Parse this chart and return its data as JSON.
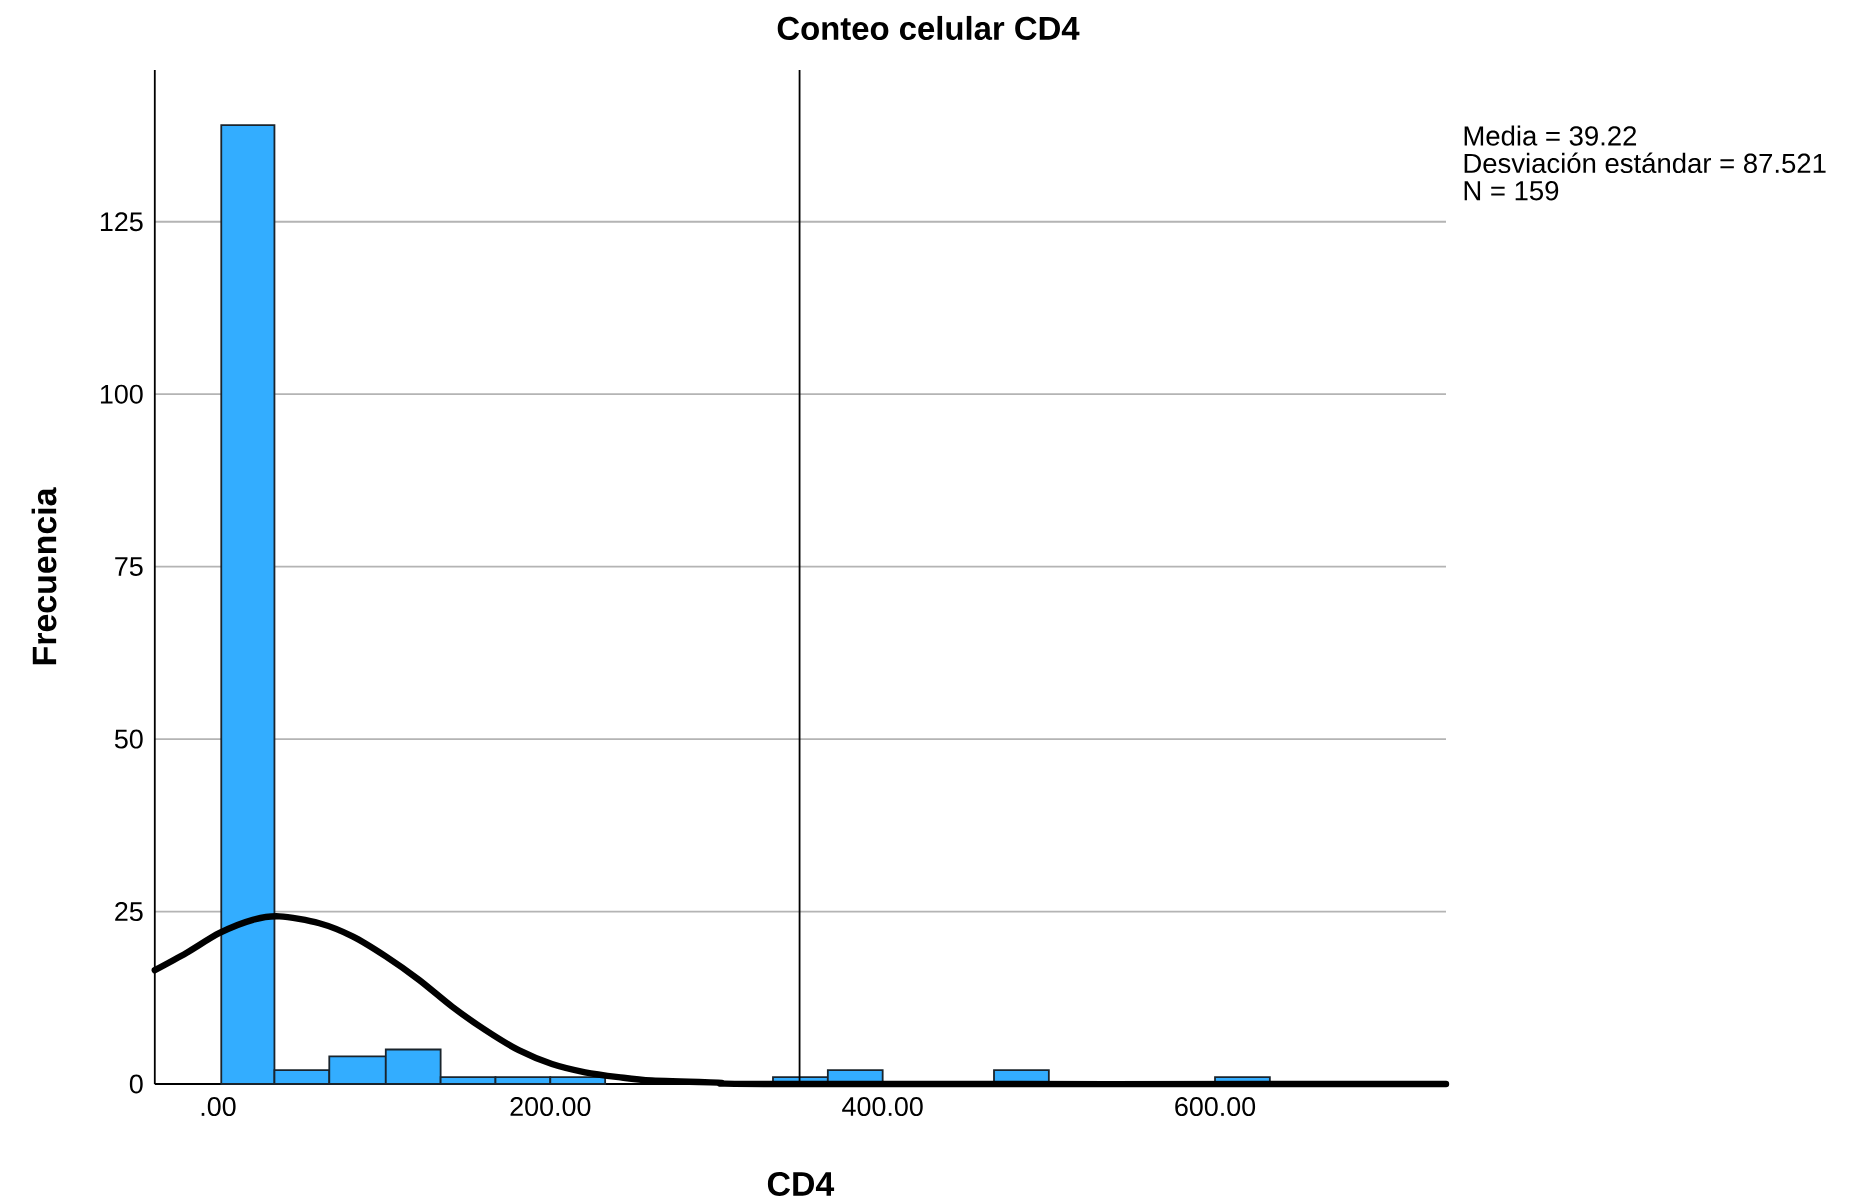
{
  "chart_data": {
    "type": "histogram",
    "title": "Conteo celular CD4",
    "xlabel": "CD4",
    "ylabel": "Frecuencia",
    "bins": [
      2,
      34,
      67,
      101,
      134,
      167,
      200,
      233,
      334,
      367,
      400,
      467,
      500,
      600,
      633
    ],
    "values": [
      139,
      2,
      4,
      5,
      1,
      1,
      1,
      0,
      1,
      2,
      0,
      2,
      0,
      1
    ],
    "color": "#33adff",
    "series": [
      {
        "type": "line",
        "color": "#000000",
        "marker": "none",
        "x": [
          -38,
          -19,
          1,
          21,
          37,
          61,
          81,
          101,
          121,
          141,
          161,
          181,
          201,
          221,
          241,
          261,
          301,
          340,
          739
        ],
        "values": [
          16.5,
          19.0,
          21.9,
          23.8,
          24.3,
          23.3,
          21.4,
          18.5,
          15.1,
          11.2,
          7.8,
          4.9,
          2.9,
          1.7,
          1.0,
          0.5,
          0.2,
          0,
          0
        ]
      }
    ],
    "ref_lines": [
      {
        "axis": "x",
        "value": 350,
        "color": "#000000"
      }
    ],
    "annotations": [
      "Media = 39.22",
      "Desviación estándar = 87.521",
      "N = 159"
    ],
    "xlim": [
      -38,
      739
    ],
    "ylim": [
      0,
      147
    ],
    "xticks": [
      {
        "value": 0,
        "label": ".00"
      },
      {
        "value": 200,
        "label": "200.00"
      },
      {
        "value": 400,
        "label": "400.00"
      },
      {
        "value": 600,
        "label": "600.00"
      }
    ],
    "yticks": [
      0,
      25,
      50,
      75,
      100,
      125
    ],
    "grid": "y"
  }
}
